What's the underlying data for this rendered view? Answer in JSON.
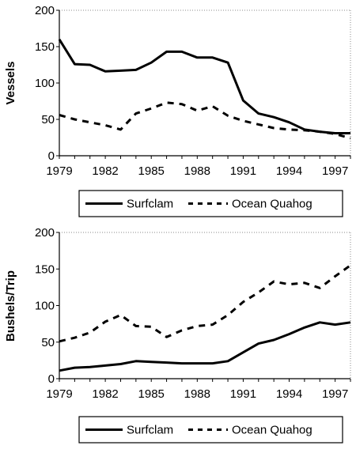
{
  "chart_data": [
    {
      "type": "line",
      "ylabel": "Vessels",
      "xlabel": "",
      "xlim": [
        1979,
        1998
      ],
      "ylim": [
        0,
        200
      ],
      "x_ticks": [
        "1979",
        "1982",
        "1985",
        "1988",
        "1991",
        "1994",
        "1997"
      ],
      "y_ticks": [
        "0",
        "50",
        "100",
        "150",
        "200"
      ],
      "legend_position": "bottom",
      "grid": false,
      "series": [
        {
          "name": "Surfclam",
          "style": "solid",
          "x": [
            1979,
            1980,
            1981,
            1982,
            1983,
            1984,
            1985,
            1986,
            1987,
            1988,
            1989,
            1990,
            1991,
            1992,
            1993,
            1994,
            1995,
            1996,
            1997,
            1998
          ],
          "values": [
            160,
            126,
            125,
            116,
            117,
            118,
            128,
            143,
            143,
            135,
            135,
            128,
            76,
            58,
            53,
            46,
            36,
            33,
            31,
            31
          ]
        },
        {
          "name": "Ocean Quahog",
          "style": "dashed",
          "x": [
            1979,
            1980,
            1981,
            1982,
            1983,
            1984,
            1985,
            1986,
            1987,
            1988,
            1989,
            1990,
            1991,
            1992,
            1993,
            1994,
            1995,
            1996,
            1997,
            1998
          ],
          "values": [
            56,
            50,
            46,
            42,
            36,
            58,
            65,
            73,
            71,
            62,
            68,
            55,
            48,
            43,
            38,
            36,
            35,
            33,
            30,
            24
          ]
        }
      ]
    },
    {
      "type": "line",
      "ylabel": "Bushels/Trip",
      "xlabel": "",
      "xlim": [
        1979,
        1998
      ],
      "ylim": [
        0,
        200
      ],
      "x_ticks": [
        "1979",
        "1982",
        "1985",
        "1988",
        "1991",
        "1994",
        "1997"
      ],
      "y_ticks": [
        "0",
        "50",
        "100",
        "150",
        "200"
      ],
      "legend_position": "bottom",
      "grid": false,
      "series": [
        {
          "name": "Surfclam",
          "style": "solid",
          "x": [
            1979,
            1980,
            1981,
            1982,
            1983,
            1984,
            1985,
            1986,
            1987,
            1988,
            1989,
            1990,
            1991,
            1992,
            1993,
            1994,
            1995,
            1996,
            1997,
            1998
          ],
          "values": [
            11,
            15,
            16,
            18,
            20,
            24,
            23,
            22,
            21,
            21,
            21,
            24,
            36,
            48,
            53,
            61,
            70,
            77,
            74,
            77
          ]
        },
        {
          "name": "Ocean Quahog",
          "style": "dashed",
          "x": [
            1979,
            1980,
            1981,
            1982,
            1983,
            1984,
            1985,
            1986,
            1987,
            1988,
            1989,
            1990,
            1991,
            1992,
            1993,
            1994,
            1995,
            1996,
            1997,
            1998
          ],
          "values": [
            51,
            56,
            63,
            78,
            87,
            72,
            71,
            57,
            66,
            72,
            74,
            87,
            105,
            118,
            133,
            129,
            131,
            124,
            140,
            155
          ]
        }
      ]
    }
  ],
  "colors": {
    "line": "#000000",
    "background": "#ffffff"
  }
}
